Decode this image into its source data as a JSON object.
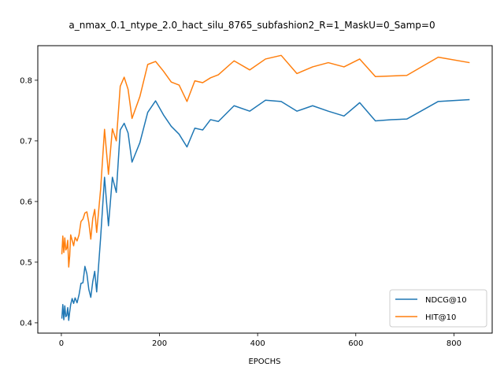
{
  "chart_data": {
    "type": "line",
    "title": "a_nmax_0.1_ntype_2.0_hact_silu_8765_subfashion2_R=1_MaskU=0_Samp=0",
    "xlabel": "EPOCHS",
    "ylabel": "",
    "xlim": [
      -48,
      878
    ],
    "ylim": [
      0.383,
      0.857
    ],
    "xticks": [
      0,
      200,
      400,
      600,
      800
    ],
    "yticks": [
      0.4,
      0.5,
      0.6,
      0.7,
      0.8
    ],
    "ytick_labels": [
      "0.4",
      "0.5",
      "0.6",
      "0.7",
      "0.8"
    ],
    "grid": false,
    "legend_position": "lower-right",
    "x": [
      1,
      3,
      5,
      7,
      9,
      11,
      13,
      15,
      17,
      19,
      22,
      25,
      28,
      32,
      36,
      40,
      44,
      48,
      52,
      56,
      60,
      64,
      68,
      72,
      80,
      88,
      96,
      104,
      112,
      120,
      128,
      136,
      144,
      160,
      176,
      192,
      208,
      224,
      240,
      256,
      272,
      288,
      304,
      320,
      352,
      384,
      416,
      448,
      480,
      512,
      544,
      576,
      608,
      640,
      672,
      704,
      768,
      832
    ],
    "series": [
      {
        "name": "NDCG@10",
        "color": "#1f77b4",
        "values": [
          0.407,
          0.43,
          0.405,
          0.428,
          0.41,
          0.412,
          0.425,
          0.404,
          0.418,
          0.43,
          0.44,
          0.432,
          0.441,
          0.433,
          0.446,
          0.465,
          0.466,
          0.493,
          0.481,
          0.455,
          0.442,
          0.468,
          0.485,
          0.451,
          0.54,
          0.64,
          0.56,
          0.64,
          0.615,
          0.718,
          0.729,
          0.713,
          0.665,
          0.697,
          0.747,
          0.766,
          0.743,
          0.724,
          0.711,
          0.69,
          0.721,
          0.718,
          0.735,
          0.732,
          0.758,
          0.749,
          0.767,
          0.765,
          0.749,
          0.758,
          0.749,
          0.741,
          0.763,
          0.733,
          0.735,
          0.736,
          0.765,
          0.768
        ]
      },
      {
        "name": "HIT@10",
        "color": "#ff7f0e",
        "values": [
          0.513,
          0.543,
          0.516,
          0.54,
          0.52,
          0.523,
          0.536,
          0.492,
          0.51,
          0.545,
          0.536,
          0.527,
          0.541,
          0.535,
          0.545,
          0.567,
          0.571,
          0.581,
          0.583,
          0.565,
          0.538,
          0.572,
          0.587,
          0.549,
          0.62,
          0.719,
          0.645,
          0.72,
          0.7,
          0.79,
          0.805,
          0.785,
          0.737,
          0.773,
          0.826,
          0.831,
          0.815,
          0.797,
          0.792,
          0.765,
          0.799,
          0.796,
          0.804,
          0.809,
          0.832,
          0.817,
          0.835,
          0.841,
          0.811,
          0.822,
          0.829,
          0.822,
          0.835,
          0.806,
          0.807,
          0.808,
          0.838,
          0.829
        ]
      }
    ]
  }
}
